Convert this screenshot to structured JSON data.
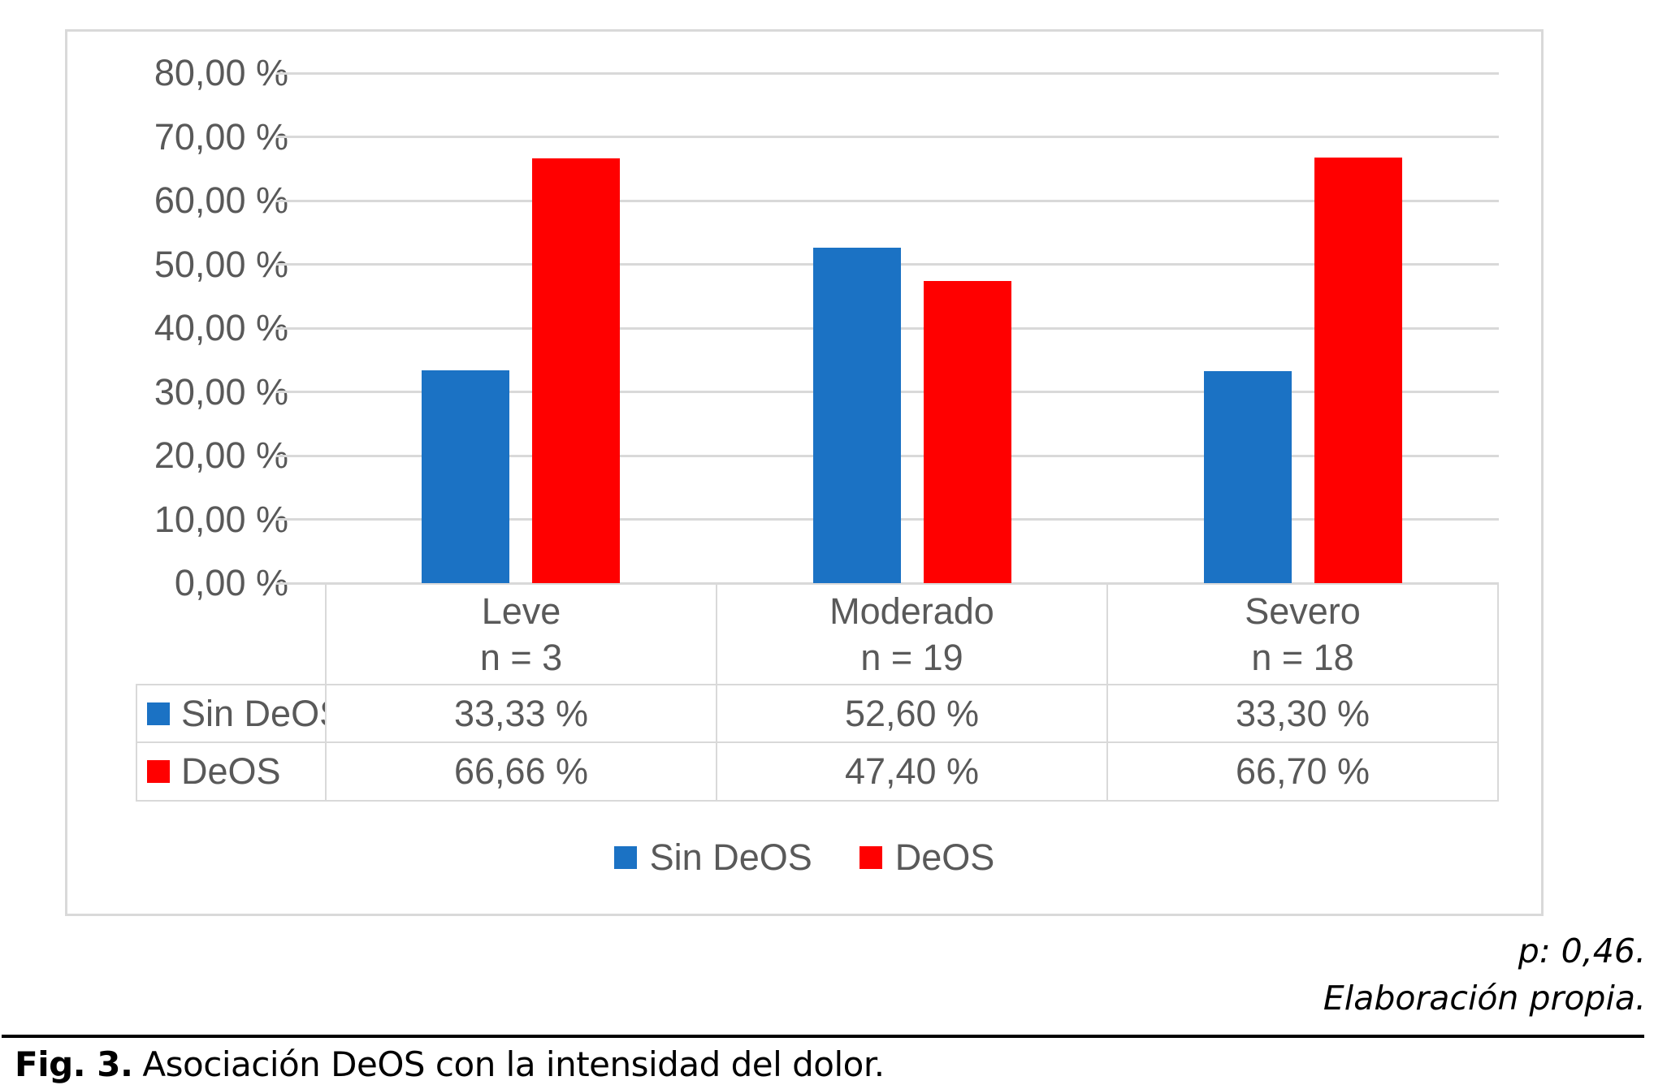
{
  "chart_data": {
    "type": "bar",
    "title": "",
    "xlabel": "",
    "ylabel": "",
    "ylim": [
      0,
      80
    ],
    "grid": true,
    "legend_position": "bottom",
    "has_data_table": true,
    "yticks": [
      "80,00 %",
      "70,00 %",
      "60,00 %",
      "50,00 %",
      "40,00 %",
      "30,00 %",
      "20,00 %",
      "10,00 %",
      "0,00 %"
    ],
    "categories": [
      "Leve",
      "Moderado",
      "Severo"
    ],
    "category_sublabels": [
      "n = 3",
      "n = 19",
      "n = 18"
    ],
    "series": [
      {
        "name": "Sin DeOS",
        "color": "#1b72c4",
        "values": [
          33.33,
          52.6,
          33.3
        ],
        "display_values": [
          "33,33 %",
          "52,60 %",
          "33,30 %"
        ]
      },
      {
        "name": "DeOS",
        "color": "#ff0000",
        "values": [
          66.66,
          47.4,
          66.7
        ],
        "display_values": [
          "66,66 %",
          "47,40 %",
          "66,70 %"
        ]
      }
    ]
  },
  "colors": {
    "frame_border": "#d9d9d9",
    "gridline": "#d9d9d9",
    "axis_text": "#595959",
    "caption_text": "#000000"
  },
  "footnotes": {
    "p_value": "p: 0,46.",
    "source": "Elaboración propia."
  },
  "caption": {
    "label": "Fig. 3.",
    "text": "Asociación DeOS con la intensidad del dolor."
  }
}
